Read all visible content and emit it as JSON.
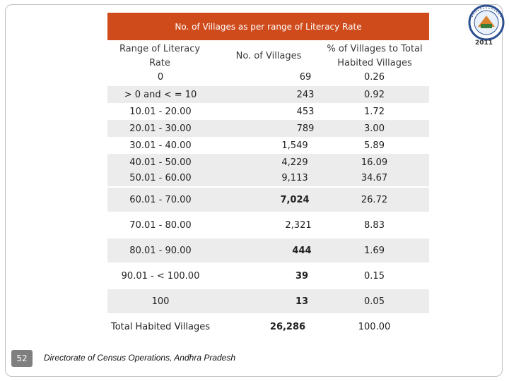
{
  "slide": {
    "title": "No. of Villages as per range of  Literacy Rate",
    "columns": {
      "range": "Range of  Literacy Rate",
      "villages": "No. of Villages",
      "percent": "% of Villages to Total Habited Villages"
    },
    "rows": [
      {
        "range": "0",
        "villages": "69",
        "percent": "0.26"
      },
      {
        "range": "> 0 and < = 10",
        "villages": "243",
        "percent": "0.92"
      },
      {
        "range": "10.01 - 20.00",
        "villages": "453",
        "percent": "1.72"
      },
      {
        "range": "20.01 - 30.00",
        "villages": "789",
        "percent": "3.00"
      },
      {
        "range": "30.01 - 40.00",
        "villages": "1,549",
        "percent": "5.89"
      },
      {
        "range": "40.01 - 50.00",
        "villages": "4,229",
        "percent": "16.09"
      },
      {
        "range": "50.01 - 60.00",
        "villages": "9,113",
        "percent": "34.67"
      },
      {
        "range": "60.01 - 70.00",
        "villages": "7,024",
        "percent": "26.72"
      },
      {
        "range": "70.01 - 80.00",
        "villages": "2,321",
        "percent": "8.83"
      },
      {
        "range": "80.01 - 90.00",
        "villages": "444",
        "percent": "1.69"
      },
      {
        "range": "90.01 - < 100.00",
        "villages": "39",
        "percent": "0.15"
      },
      {
        "range": "100",
        "villages": "13",
        "percent": "0.05"
      },
      {
        "range": "Total Habited Villages",
        "villages": "26,286",
        "percent": "100.00"
      }
    ],
    "page_number": "52",
    "footer": "Directorate of Census Operations, Andhra Pradesh",
    "logo_year": "2011",
    "colors": {
      "title_bg": "#cf4b1c",
      "row_shade": "#ececec"
    }
  }
}
